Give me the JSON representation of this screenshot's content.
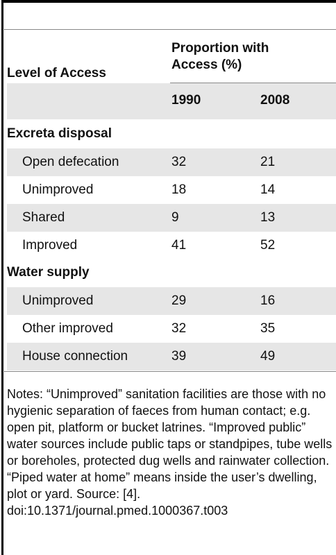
{
  "table": {
    "header": {
      "label": "Level of Access",
      "group": "Proportion with Access (%)",
      "years": [
        "1990",
        "2008"
      ]
    },
    "sections": [
      {
        "title": "Excreta disposal",
        "rows": [
          {
            "label": "Open defecation",
            "values": [
              32,
              21
            ]
          },
          {
            "label": "Unimproved",
            "values": [
              18,
              14
            ]
          },
          {
            "label": "Shared",
            "values": [
              9,
              13
            ]
          },
          {
            "label": "Improved",
            "values": [
              41,
              52
            ]
          }
        ]
      },
      {
        "title": "Water supply",
        "rows": [
          {
            "label": "Unimproved",
            "values": [
              29,
              16
            ]
          },
          {
            "label": "Other improved",
            "values": [
              32,
              35
            ]
          },
          {
            "label": "House connection",
            "values": [
              39,
              49
            ]
          }
        ]
      }
    ],
    "notes": "Notes: “Unimproved” sanitation facilities are those with no hygienic separation of faeces from human contact; e.g. open pit, platform or bucket latrines. “Improved public” water sources include public taps or standpipes, tube wells or boreholes, protected dug wells and rainwater collection. “Piped water at home” means inside the user’s dwelling, plot or yard. Source: [4].",
    "doi": "doi:10.1371/journal.pmed.1000367.t003"
  }
}
